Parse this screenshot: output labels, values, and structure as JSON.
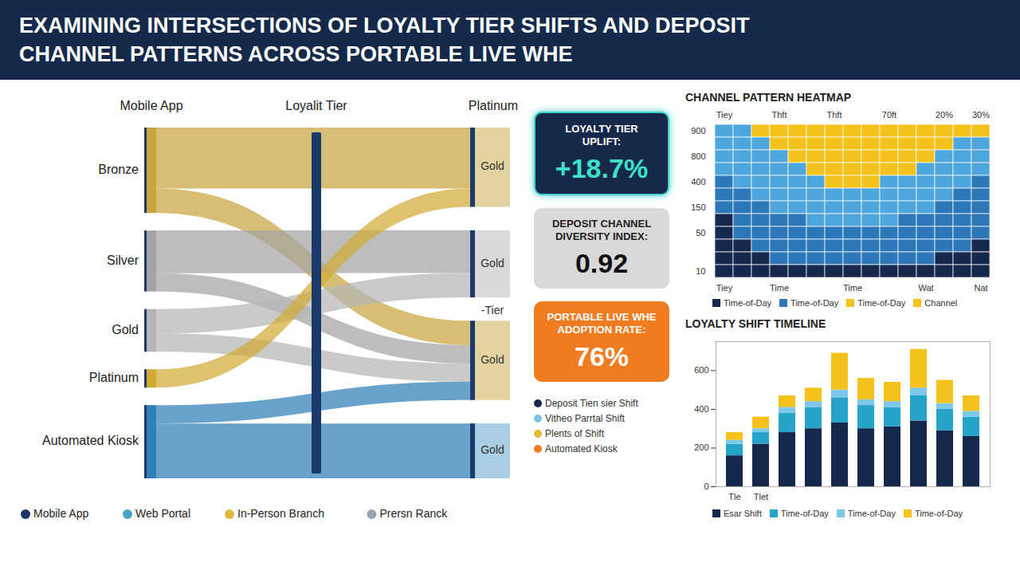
{
  "header": {
    "title": "EXAMINING INTERSECTIONS OF LOYALTY TIER SHIFTS AND DEPOSIT CHANNEL PATTERNS ACROSS PORTABLE LIVE WHE"
  },
  "sankey": {
    "column_heads": [
      "Mobile App",
      "Loyalit Tier",
      "Platinum"
    ],
    "sources": [
      {
        "label": "Bronze",
        "color": "#c9a53e"
      },
      {
        "label": "Silver",
        "color": "#a3a3a3"
      },
      {
        "label": "Gold",
        "color": "#b5b5b5"
      },
      {
        "label": "Platinum",
        "color": "#d1aa35"
      },
      {
        "label": "Automated Kiosk",
        "color": "#2f7fb8"
      }
    ],
    "targets": [
      {
        "label": "Gold",
        "color": "#e3d3a0"
      },
      {
        "label": "Gold",
        "color": "#d9d9d9"
      },
      {
        "label": "Gold",
        "color": "#e3d3a0",
        "head": "-Tier"
      },
      {
        "label": "Gold",
        "color": "#a9cde2"
      }
    ],
    "links": [
      {
        "source": 0,
        "target": 0,
        "value": 50
      },
      {
        "source": 0,
        "target": 2,
        "value": 20
      },
      {
        "source": 1,
        "target": 1,
        "value": 35
      },
      {
        "source": 1,
        "target": 2,
        "value": 15
      },
      {
        "source": 2,
        "target": 1,
        "value": 20
      },
      {
        "source": 2,
        "target": 2,
        "value": 15
      },
      {
        "source": 3,
        "target": 0,
        "value": 15
      },
      {
        "source": 4,
        "target": 2,
        "value": 15
      },
      {
        "source": 4,
        "target": 3,
        "value": 45
      }
    ],
    "legend_items": [
      {
        "label": "Mobile App",
        "color": "#1b3a6b"
      },
      {
        "label": "Web Portal",
        "color": "#4aa3c9"
      },
      {
        "label": "In-Person Branch",
        "color": "#e0b83a"
      },
      {
        "label": "Prersn Ranck",
        "color": "#9aa5b1"
      }
    ]
  },
  "kpis": [
    {
      "label": "LOYALTY TIER UPLIFT:",
      "value": "+18.7%",
      "color": "#17294a"
    },
    {
      "label": "DEPOSIT CHANNEL DIVERSITY INDEX:",
      "value": "0.92",
      "color": "#d9d9d9"
    },
    {
      "label": "PORTABLE LIVE WHE ADOPTION RATE:",
      "value": "76%",
      "color": "#f07c22"
    }
  ],
  "kpi_legend": [
    {
      "label": "Deposit Tien sier Shift",
      "color": "#16284d"
    },
    {
      "label": "Vitheo Parrtal Shift",
      "color": "#7fc3e0"
    },
    {
      "label": "Plents of Shift",
      "color": "#e6b93a"
    },
    {
      "label": "Automated Kiosk",
      "color": "#f07c22"
    }
  ],
  "chart_data": [
    {
      "type": "heatmap",
      "title": "CHANNEL PATTERN HEATMAP",
      "columns_top": [
        "Tiey",
        null,
        null,
        "Thft",
        null,
        null,
        "Thft",
        null,
        null,
        "70ft",
        null,
        null,
        "20%",
        null,
        "30%"
      ],
      "columns_bottom": [
        "Tiey",
        null,
        null,
        "Time",
        null,
        null,
        null,
        "Time",
        null,
        null,
        null,
        "Wat",
        null,
        null,
        "Nat"
      ],
      "rows": [
        "900",
        null,
        "800",
        null,
        "400",
        null,
        "150",
        null,
        "50",
        null,
        null,
        "10"
      ],
      "cells": [
        [
          2,
          2,
          3,
          3,
          3,
          3,
          3,
          3,
          3,
          3,
          3,
          3,
          3,
          3,
          3
        ],
        [
          2,
          2,
          2,
          3,
          3,
          3,
          3,
          3,
          3,
          3,
          3,
          3,
          3,
          2,
          2
        ],
        [
          2,
          2,
          2,
          2,
          3,
          3,
          3,
          3,
          3,
          3,
          3,
          3,
          2,
          2,
          2
        ],
        [
          2,
          2,
          2,
          2,
          2,
          3,
          3,
          3,
          3,
          3,
          3,
          2,
          2,
          2,
          2
        ],
        [
          1,
          2,
          2,
          2,
          2,
          2,
          3,
          3,
          3,
          2,
          2,
          2,
          2,
          2,
          1
        ],
        [
          1,
          1,
          2,
          2,
          2,
          2,
          2,
          2,
          2,
          2,
          2,
          2,
          2,
          1,
          1
        ],
        [
          1,
          1,
          1,
          2,
          2,
          2,
          2,
          2,
          2,
          2,
          2,
          2,
          1,
          1,
          1
        ],
        [
          0,
          1,
          1,
          1,
          1,
          2,
          2,
          2,
          2,
          2,
          1,
          1,
          1,
          1,
          1
        ],
        [
          0,
          1,
          1,
          1,
          1,
          1,
          1,
          1,
          1,
          1,
          1,
          1,
          1,
          1,
          1
        ],
        [
          0,
          0,
          1,
          1,
          1,
          1,
          1,
          1,
          1,
          1,
          1,
          1,
          1,
          1,
          0
        ],
        [
          0,
          0,
          0,
          1,
          1,
          1,
          1,
          1,
          1,
          1,
          1,
          1,
          0,
          0,
          0
        ],
        [
          0,
          0,
          0,
          0,
          0,
          0,
          0,
          0,
          0,
          0,
          0,
          0,
          0,
          0,
          0
        ]
      ],
      "level_colors": [
        "#16284d",
        "#2c78b8",
        "#4fa6dc",
        "#f4c21b"
      ],
      "legend_items": [
        {
          "name": "Time-of-Day",
          "color": "#16284d"
        },
        {
          "name": "Time-of-Day",
          "color": "#2c78b8"
        },
        {
          "name": "Time-of-Day",
          "color": "#f4c21b"
        },
        {
          "name": "Channel",
          "color": "#f4c21b"
        }
      ]
    },
    {
      "type": "bar",
      "title": "LOYALTY SHIFT TIMELINE",
      "stacked": true,
      "categories": [
        "Tle",
        "Tlet",
        null,
        null,
        null,
        null,
        null,
        null,
        null,
        null
      ],
      "series": [
        {
          "name": "Esar Shift",
          "color": "#16284d",
          "values": [
            160,
            220,
            280,
            300,
            330,
            300,
            310,
            340,
            290,
            260
          ]
        },
        {
          "name": "Time-of-Day",
          "color": "#27a3c9",
          "values": [
            60,
            60,
            100,
            110,
            130,
            120,
            100,
            130,
            110,
            100
          ]
        },
        {
          "name": "Time-of-Day",
          "color": "#7cc8e8",
          "values": [
            20,
            20,
            30,
            30,
            40,
            30,
            30,
            40,
            30,
            30
          ]
        },
        {
          "name": "Time-of-Day",
          "color": "#f4c21b",
          "values": [
            40,
            60,
            60,
            70,
            190,
            110,
            100,
            200,
            120,
            80
          ]
        }
      ],
      "ylim": [
        0,
        750
      ],
      "yticks": [
        0,
        200,
        400,
        600
      ]
    }
  ]
}
